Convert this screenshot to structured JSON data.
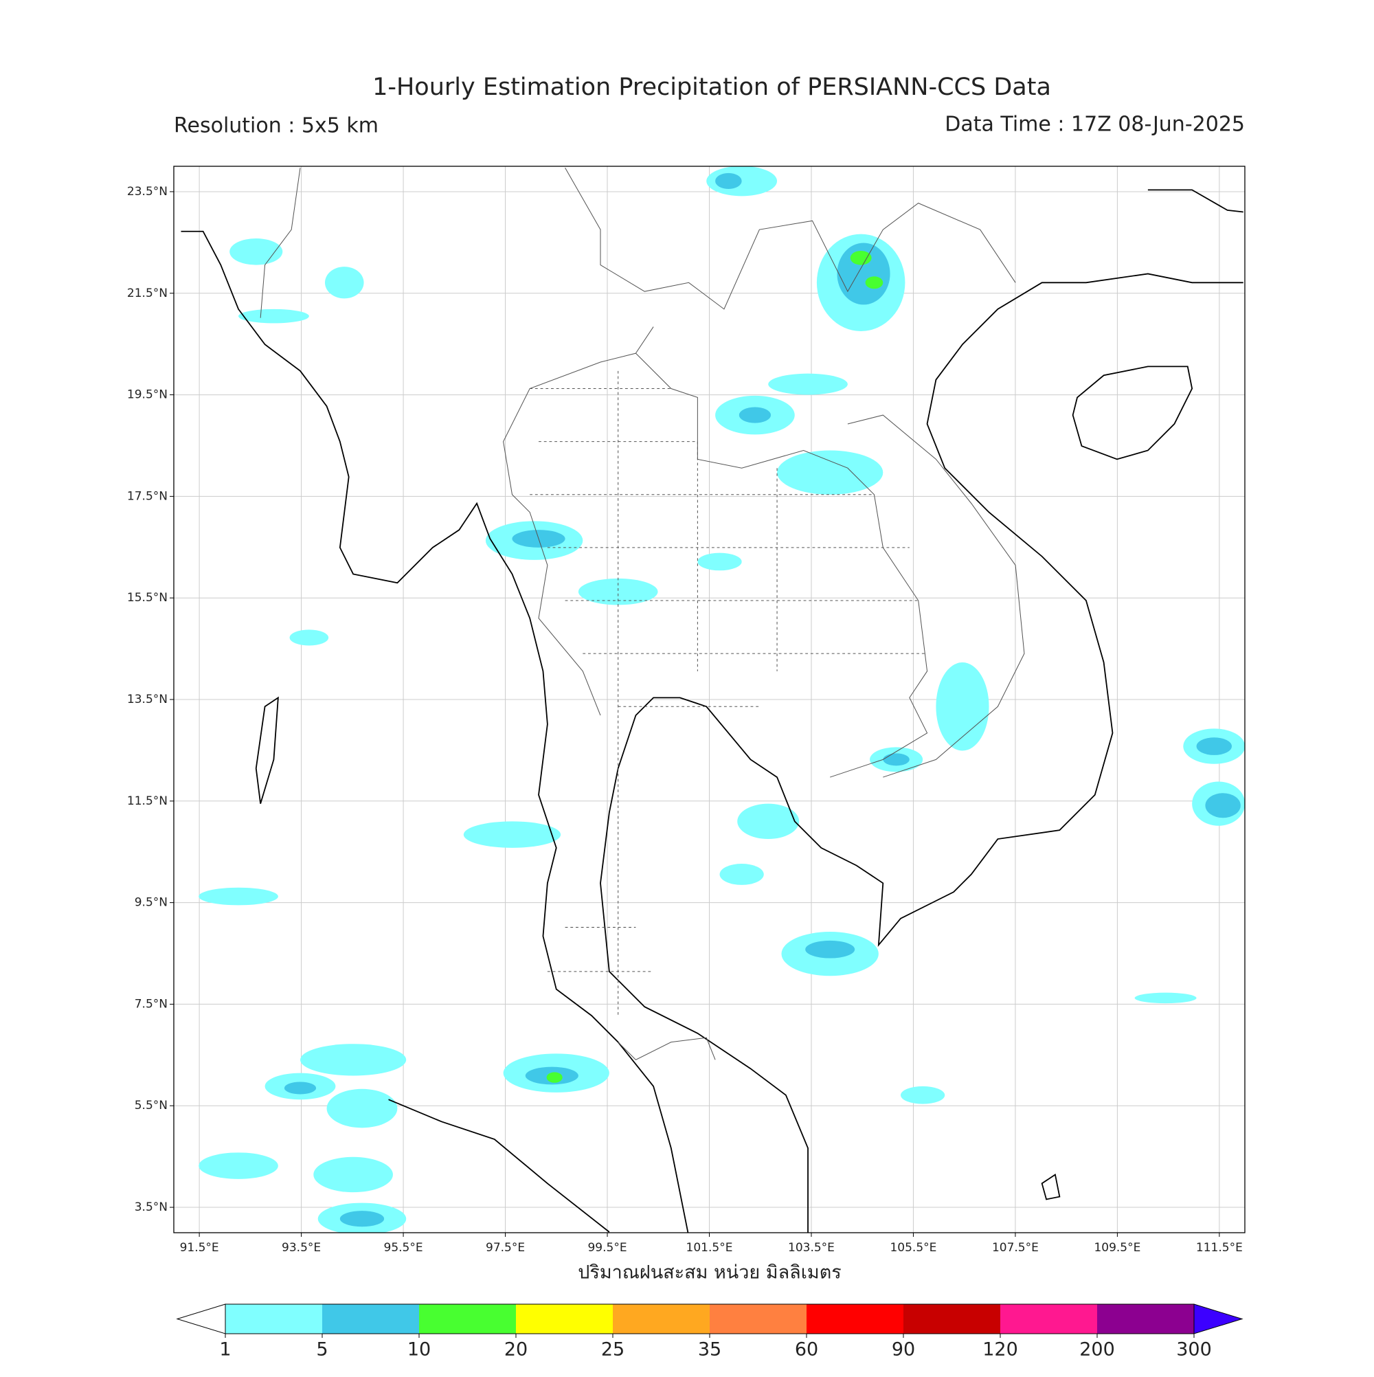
{
  "title": "1-Hourly Estimation Precipitation of PERSIANN-CCS Data",
  "resolution": "Resolution : 5x5 km",
  "data_time": "Data Time : 17Z 08-Jun-2025",
  "map": {
    "xlim": [
      91,
      112
    ],
    "ylim": [
      3,
      24
    ],
    "grid": true,
    "xticks": [
      {
        "value": 91.5,
        "label": "91.5°E"
      },
      {
        "value": 93.5,
        "label": "93.5°E"
      },
      {
        "value": 95.5,
        "label": "95.5°E"
      },
      {
        "value": 97.5,
        "label": "97.5°E"
      },
      {
        "value": 99.5,
        "label": "99.5°E"
      },
      {
        "value": 101.5,
        "label": "101.5°E"
      },
      {
        "value": 103.5,
        "label": "103.5°E"
      },
      {
        "value": 105.5,
        "label": "105.5°E"
      },
      {
        "value": 107.5,
        "label": "107.5°E"
      },
      {
        "value": 109.5,
        "label": "109.5°E"
      },
      {
        "value": 111.5,
        "label": "111.5°E"
      }
    ],
    "yticks": [
      {
        "value": 23.5,
        "label": "23.5°N"
      },
      {
        "value": 21.5,
        "label": "21.5°N"
      },
      {
        "value": 19.5,
        "label": "19.5°N"
      },
      {
        "value": 17.5,
        "label": "17.5°N"
      },
      {
        "value": 15.5,
        "label": "15.5°N"
      },
      {
        "value": 13.5,
        "label": "13.5°N"
      },
      {
        "value": 11.5,
        "label": "11.5°N"
      },
      {
        "value": 9.5,
        "label": "9.5°N"
      },
      {
        "value": 7.5,
        "label": "7.5°N"
      },
      {
        "value": 5.5,
        "label": "5.5°N"
      },
      {
        "value": 3.5,
        "label": "3.5°N"
      }
    ]
  },
  "colorbar": {
    "label": "ปริมาณฝนสะสม หน่วย มิลลิเมตร",
    "levels": [
      1,
      5,
      10,
      20,
      25,
      35,
      60,
      90,
      120,
      200,
      300
    ],
    "colors": [
      "#80ffff",
      "#40c8e8",
      "#48ff30",
      "#ffff00",
      "#ffa820",
      "#ff8040",
      "#ff0000",
      "#c80000",
      "#ff1890",
      "#8c0090"
    ],
    "under_color": "#ffffff",
    "over_color": "#3c00ff"
  }
}
